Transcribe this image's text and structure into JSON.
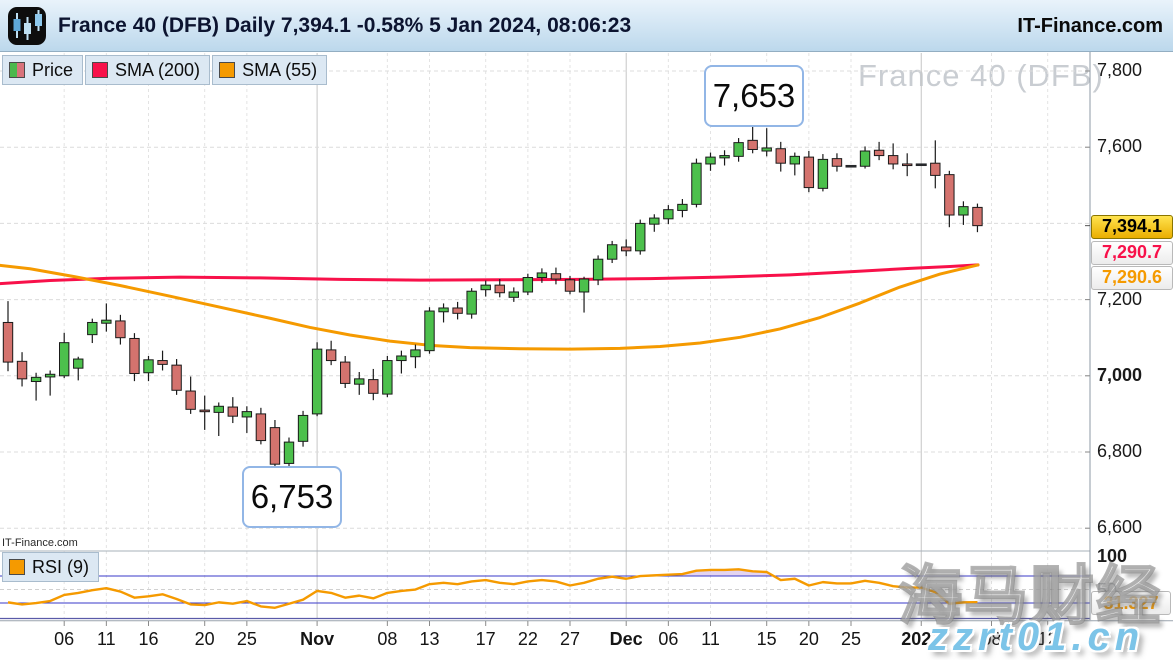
{
  "header": {
    "title": "France 40 (DFB) Daily 7,394.1 -0.58% 5 Jan 2024, 08:06:23",
    "brand": "IT-Finance.com",
    "logo_icon": "candlestick-chart-icon"
  },
  "legend": {
    "price": "Price",
    "sma200": "SMA (200)",
    "sma55": "SMA (55)"
  },
  "rsi": {
    "legend": "RSI (9)"
  },
  "annotations": {
    "high": {
      "text": "7,653"
    },
    "low": {
      "text": "6,753"
    }
  },
  "watermarks": {
    "chart": "France 40 (DFB)",
    "site_small": "IT-Finance.com",
    "cn_text": "海马财经",
    "cn_url": "zzrt01.cn"
  },
  "colors": {
    "candle_up": "#4cc04c",
    "candle_down": "#d4736e",
    "candle_stroke": "#1a1a1a",
    "sma200": "#f8114a",
    "sma55": "#f59a00",
    "rsi_line": "#f59a00",
    "rsi_level": "#3a3ac8",
    "rsi_fill": "rgba(153,102,204,0.28)",
    "grid": "#dcdcdc",
    "grid_month": "#c6c6c6",
    "badge_gold_text": "7,394.1"
  },
  "axis": {
    "price_ticks": [
      {
        "label": "7,800",
        "value": 7800
      },
      {
        "label": "7,600",
        "value": 7600
      },
      {
        "label": "7,200",
        "value": 7200
      },
      {
        "label": "7,000",
        "value": 7000,
        "bold": true
      },
      {
        "label": "6,800",
        "value": 6800
      },
      {
        "label": "6,600",
        "value": 6600
      }
    ],
    "price_badges": [
      {
        "text": "7,394.1",
        "kind": "last"
      },
      {
        "text": "7,290.7",
        "kind": "sma200"
      },
      {
        "text": "7,290.6",
        "kind": "sma55"
      }
    ],
    "x_ticks": [
      {
        "label": "06",
        "i": 4
      },
      {
        "label": "11",
        "i": 7
      },
      {
        "label": "16",
        "i": 10
      },
      {
        "label": "20",
        "i": 14
      },
      {
        "label": "25",
        "i": 17
      },
      {
        "label": "Nov",
        "i": 22,
        "bold": true
      },
      {
        "label": "08",
        "i": 27
      },
      {
        "label": "13",
        "i": 30
      },
      {
        "label": "17",
        "i": 34
      },
      {
        "label": "22",
        "i": 37
      },
      {
        "label": "27",
        "i": 40
      },
      {
        "label": "Dec",
        "i": 44,
        "bold": true
      },
      {
        "label": "06",
        "i": 47
      },
      {
        "label": "11",
        "i": 50
      },
      {
        "label": "15",
        "i": 54
      },
      {
        "label": "20",
        "i": 57
      },
      {
        "label": "25",
        "i": 60
      },
      {
        "label": "2024",
        "i": 65,
        "bold": true
      },
      {
        "label": "08",
        "i": 70
      },
      {
        "label": "12",
        "i": 74
      }
    ],
    "rsi_ticks": [
      {
        "label": "100",
        "value": 100,
        "bold": true
      },
      {
        "label": "50",
        "value": 50,
        "grey": true
      }
    ],
    "rsi_badge": {
      "text": "31.327",
      "value": 31.327
    }
  },
  "chart_data": {
    "type": "candlestick",
    "title": "France 40 (DFB) Daily",
    "last_price": 7394.1,
    "change_pct": -0.58,
    "timestamp": "5 Jan 2024, 08:06:23",
    "ylim": [
      6550,
      7850
    ],
    "price_grid_step": 200,
    "high_annotation": 7653,
    "low_annotation": 6753,
    "candles": [
      [
        "Oct 2",
        7140,
        7196,
        7012,
        7036
      ],
      [
        "Oct 3",
        7038,
        7062,
        6972,
        6992
      ],
      [
        "Oct 4",
        6985,
        7008,
        6935,
        6996
      ],
      [
        "Oct 5",
        6997,
        7014,
        6948,
        7004
      ],
      [
        "Oct 6",
        7000,
        7113,
        6994,
        7087
      ],
      [
        "Oct 9",
        7020,
        7050,
        6988,
        7044
      ],
      [
        "Oct 10",
        7108,
        7150,
        7086,
        7140
      ],
      [
        "Oct 11",
        7138,
        7190,
        7116,
        7146
      ],
      [
        "Oct 12",
        7144,
        7160,
        7082,
        7100
      ],
      [
        "Oct 13",
        7098,
        7112,
        6986,
        7006
      ],
      [
        "Oct 16",
        7008,
        7052,
        6986,
        7042
      ],
      [
        "Oct 17",
        7040,
        7066,
        7014,
        7030
      ],
      [
        "Oct 18",
        7028,
        7044,
        6950,
        6962
      ],
      [
        "Oct 19",
        6960,
        6998,
        6900,
        6912
      ],
      [
        "Oct 20",
        6910,
        6948,
        6858,
        6906
      ],
      [
        "Oct 23",
        6904,
        6930,
        6842,
        6920
      ],
      [
        "Oct 24",
        6918,
        6944,
        6876,
        6894
      ],
      [
        "Oct 25",
        6892,
        6920,
        6850,
        6906
      ],
      [
        "Oct 26",
        6900,
        6916,
        6820,
        6830
      ],
      [
        "Oct 27",
        6864,
        6884,
        6753,
        6768
      ],
      [
        "Oct 30",
        6770,
        6838,
        6756,
        6826
      ],
      [
        "Oct 31",
        6828,
        6908,
        6814,
        6896
      ],
      [
        "Nov 1",
        6900,
        7088,
        6894,
        7070
      ],
      [
        "Nov 2",
        7068,
        7092,
        7028,
        7040
      ],
      [
        "Nov 3",
        7036,
        7052,
        6968,
        6980
      ],
      [
        "Nov 6",
        6978,
        7010,
        6950,
        6992
      ],
      [
        "Nov 7",
        6990,
        7018,
        6936,
        6954
      ],
      [
        "Nov 8",
        6952,
        7052,
        6944,
        7040
      ],
      [
        "Nov 9",
        7040,
        7066,
        7006,
        7052
      ],
      [
        "Nov 10",
        7050,
        7082,
        7020,
        7068
      ],
      [
        "Nov 13",
        7066,
        7180,
        7058,
        7170
      ],
      [
        "Nov 14",
        7168,
        7190,
        7140,
        7178
      ],
      [
        "Nov 15",
        7178,
        7194,
        7148,
        7164
      ],
      [
        "Nov 16",
        7162,
        7230,
        7150,
        7222
      ],
      [
        "Nov 17",
        7226,
        7250,
        7208,
        7238
      ],
      [
        "Nov 20",
        7238,
        7254,
        7206,
        7218
      ],
      [
        "Nov 21",
        7206,
        7232,
        7194,
        7220
      ],
      [
        "Nov 22",
        7220,
        7268,
        7212,
        7258
      ],
      [
        "Nov 23",
        7258,
        7282,
        7244,
        7270
      ],
      [
        "Nov 24",
        7268,
        7284,
        7240,
        7254
      ],
      [
        "Nov 27",
        7252,
        7262,
        7214,
        7222
      ],
      [
        "Nov 28",
        7220,
        7260,
        7166,
        7254
      ],
      [
        "Nov 29",
        7252,
        7316,
        7238,
        7306
      ],
      [
        "Nov 30",
        7306,
        7354,
        7296,
        7344
      ],
      [
        "Dec 1",
        7338,
        7358,
        7314,
        7328
      ],
      [
        "Dec 4",
        7328,
        7410,
        7318,
        7400
      ],
      [
        "Dec 5",
        7398,
        7424,
        7378,
        7414
      ],
      [
        "Dec 6",
        7412,
        7448,
        7398,
        7436
      ],
      [
        "Dec 7",
        7434,
        7464,
        7416,
        7450
      ],
      [
        "Dec 8",
        7450,
        7570,
        7442,
        7558
      ],
      [
        "Dec 11",
        7556,
        7586,
        7538,
        7574
      ],
      [
        "Dec 12",
        7572,
        7592,
        7552,
        7578
      ],
      [
        "Dec 13",
        7576,
        7624,
        7562,
        7612
      ],
      [
        "Dec 14",
        7618,
        7653,
        7584,
        7594
      ],
      [
        "Dec 15",
        7590,
        7650,
        7576,
        7598
      ],
      [
        "Dec 18",
        7596,
        7614,
        7536,
        7558
      ],
      [
        "Dec 19",
        7556,
        7586,
        7526,
        7576
      ],
      [
        "Dec 20",
        7574,
        7590,
        7482,
        7494
      ],
      [
        "Dec 21",
        7492,
        7582,
        7484,
        7568
      ],
      [
        "Dec 22",
        7570,
        7584,
        7536,
        7550
      ],
      [
        "Dec 25",
        7550,
        7550,
        7550,
        7550
      ],
      [
        "Dec 26",
        7550,
        7602,
        7544,
        7590
      ],
      [
        "Dec 27",
        7592,
        7614,
        7566,
        7578
      ],
      [
        "Dec 28",
        7578,
        7610,
        7542,
        7556
      ],
      [
        "Dec 29",
        7556,
        7584,
        7524,
        7554
      ],
      [
        "Jan 1",
        7554,
        7554,
        7554,
        7554
      ],
      [
        "Jan 2",
        7558,
        7618,
        7492,
        7526
      ],
      [
        "Jan 3",
        7528,
        7538,
        7390,
        7422
      ],
      [
        "Jan 4",
        7422,
        7458,
        7396,
        7444
      ],
      [
        "Jan 5",
        7442,
        7452,
        7377,
        7394.1
      ]
    ],
    "series": [
      {
        "name": "SMA (200)",
        "points": [
          [
            0,
            7242
          ],
          [
            50,
            7250
          ],
          [
            110,
            7256
          ],
          [
            180,
            7259
          ],
          [
            260,
            7257
          ],
          [
            340,
            7253
          ],
          [
            420,
            7251
          ],
          [
            500,
            7252
          ],
          [
            580,
            7253
          ],
          [
            650,
            7255
          ],
          [
            720,
            7259
          ],
          [
            790,
            7265
          ],
          [
            850,
            7273
          ],
          [
            910,
            7282
          ],
          [
            950,
            7287
          ],
          [
            978,
            7291
          ]
        ]
      },
      {
        "name": "SMA (55)",
        "points": [
          [
            0,
            7290
          ],
          [
            30,
            7281
          ],
          [
            75,
            7260
          ],
          [
            120,
            7237
          ],
          [
            170,
            7209
          ],
          [
            220,
            7180
          ],
          [
            270,
            7151
          ],
          [
            310,
            7127
          ],
          [
            350,
            7107
          ],
          [
            390,
            7091
          ],
          [
            430,
            7080
          ],
          [
            470,
            7074
          ],
          [
            520,
            7071
          ],
          [
            570,
            7070
          ],
          [
            620,
            7072
          ],
          [
            660,
            7077
          ],
          [
            700,
            7086
          ],
          [
            740,
            7101
          ],
          [
            780,
            7123
          ],
          [
            820,
            7153
          ],
          [
            860,
            7191
          ],
          [
            900,
            7233
          ],
          [
            940,
            7267
          ],
          [
            978,
            7291
          ]
        ]
      }
    ],
    "rsi": {
      "period": 9,
      "levels": {
        "upper": 70,
        "lower": 30,
        "mid": 50
      },
      "values": [
        31,
        28,
        30,
        33,
        42,
        45,
        49,
        52,
        47,
        38,
        40,
        43,
        36,
        28,
        27,
        31,
        29,
        33,
        25,
        23,
        29,
        35,
        48,
        45,
        38,
        41,
        37,
        45,
        48,
        50,
        58,
        60,
        58,
        62,
        64,
        60,
        58,
        62,
        64,
        62,
        56,
        60,
        66,
        69,
        66,
        70,
        71,
        72,
        73,
        78,
        79,
        79,
        80,
        77,
        76,
        64,
        66,
        56,
        61,
        59,
        59,
        63,
        60,
        55,
        53,
        53,
        46,
        29,
        31,
        31.327
      ]
    }
  }
}
